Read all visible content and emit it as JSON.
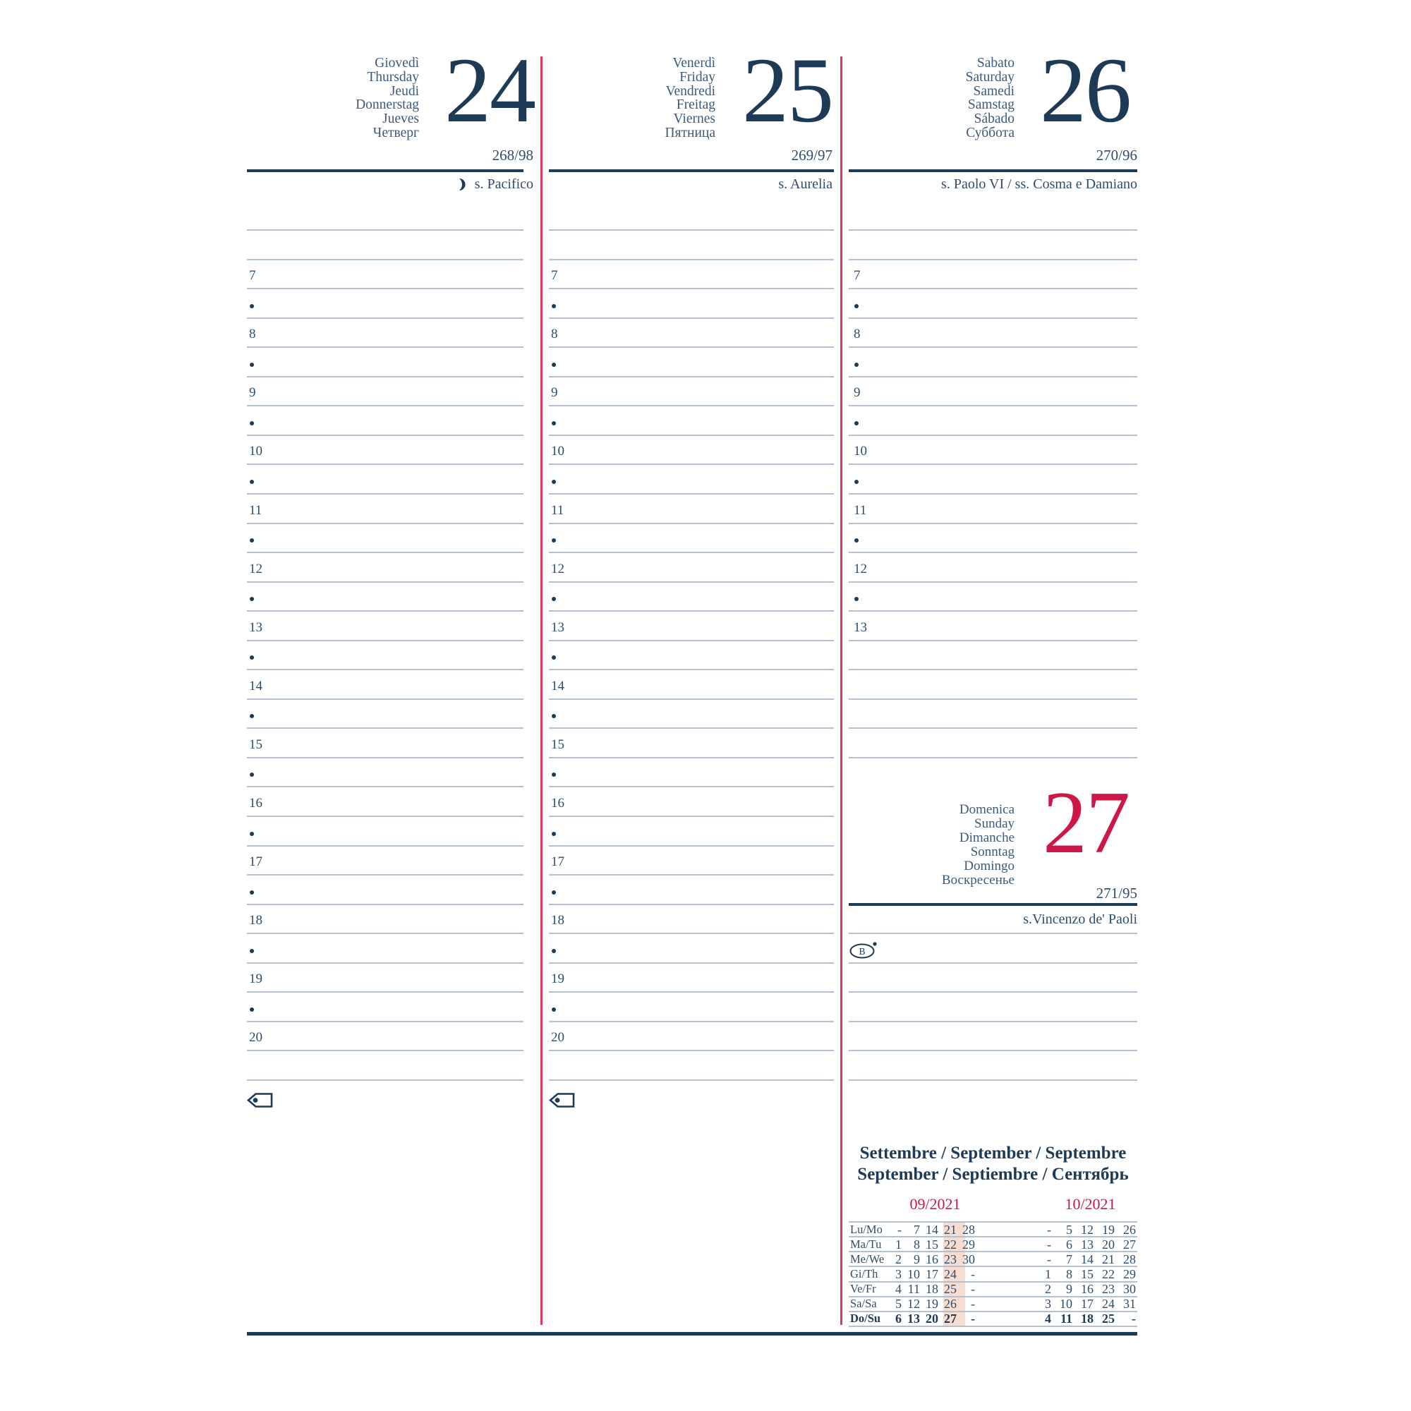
{
  "colors": {
    "navy": "#1d3a57",
    "text_blue": "#2e4d6d",
    "muted_blue": "#3d5a7a",
    "red": "#ce1747",
    "red_line": "#e23a5f",
    "rule": "#b2c0d2",
    "highlight": "#f8dcd0"
  },
  "time_grid": {
    "dot": "•"
  },
  "icons": {
    "moon": "waning-crescent-moon",
    "tag": "page-marker-tag",
    "circled_b": "circled-b"
  },
  "days": [
    {
      "key": "thursday",
      "names": [
        "Giovedì",
        "Thursday",
        "Jeudi",
        "Donnerstag",
        "Jueves",
        "Четверг"
      ],
      "number": "24",
      "ordinal": "268/98",
      "saint": "s. Pacifico",
      "hours": [
        "7",
        "8",
        "9",
        "10",
        "11",
        "12",
        "13",
        "14",
        "15",
        "16",
        "17",
        "18",
        "19",
        "20"
      ]
    },
    {
      "key": "friday",
      "names": [
        "Venerdì",
        "Friday",
        "Vendredi",
        "Freitag",
        "Viernes",
        "Пятница"
      ],
      "number": "25",
      "ordinal": "269/97",
      "saint": "s. Aurelia",
      "hours": [
        "7",
        "8",
        "9",
        "10",
        "11",
        "12",
        "13",
        "14",
        "15",
        "16",
        "17",
        "18",
        "19",
        "20"
      ]
    },
    {
      "key": "saturday",
      "names": [
        "Sabato",
        "Saturday",
        "Samedi",
        "Samstag",
        "Sábado",
        "Суббота"
      ],
      "number": "26",
      "ordinal": "270/96",
      "saint": "s. Paolo VI / ss. Cosma e Damiano",
      "hours": [
        "7",
        "8",
        "9",
        "10",
        "11",
        "12",
        "13"
      ]
    }
  ],
  "sunday": {
    "key": "sunday",
    "names": [
      "Domenica",
      "Sunday",
      "Dimanche",
      "Sonntag",
      "Domingo",
      "Воскресенье"
    ],
    "number": "27",
    "ordinal": "271/95",
    "saint": "s.Vincenzo de' Paoli"
  },
  "mini_calendar": {
    "title_line1": "Settembre / September / Septembre",
    "title_line2": "September / Septiembre / Сентябрь",
    "month_left": "09/2021",
    "month_right": "10/2021",
    "rows": [
      {
        "label": "Lu/Mo",
        "sep": [
          "-",
          "7",
          "14",
          "21",
          "28"
        ],
        "oct": [
          "-",
          "5",
          "12",
          "19",
          "26"
        ]
      },
      {
        "label": "Ma/Tu",
        "sep": [
          "1",
          "8",
          "15",
          "22",
          "29"
        ],
        "oct": [
          "-",
          "6",
          "13",
          "20",
          "27"
        ]
      },
      {
        "label": "Me/We",
        "sep": [
          "2",
          "9",
          "16",
          "23",
          "30"
        ],
        "oct": [
          "-",
          "7",
          "14",
          "21",
          "28"
        ]
      },
      {
        "label": "Gi/Th",
        "sep": [
          "3",
          "10",
          "17",
          "24",
          "-"
        ],
        "oct": [
          "1",
          "8",
          "15",
          "22",
          "29"
        ]
      },
      {
        "label": "Ve/Fr",
        "sep": [
          "4",
          "11",
          "18",
          "25",
          "-"
        ],
        "oct": [
          "2",
          "9",
          "16",
          "23",
          "30"
        ]
      },
      {
        "label": "Sa/Sa",
        "sep": [
          "5",
          "12",
          "19",
          "26",
          "-"
        ],
        "oct": [
          "3",
          "10",
          "17",
          "24",
          "31"
        ]
      },
      {
        "label": "Do/Su",
        "sep": [
          "6",
          "13",
          "20",
          "27",
          "-"
        ],
        "oct": [
          "4",
          "11",
          "18",
          "25",
          "-"
        ],
        "bold": true
      }
    ]
  }
}
